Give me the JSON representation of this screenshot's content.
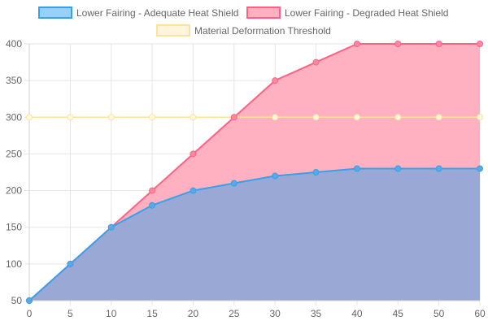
{
  "chart_data": {
    "type": "area",
    "x": [
      0,
      5,
      10,
      15,
      20,
      25,
      30,
      35,
      40,
      45,
      50,
      60
    ],
    "series": [
      {
        "name": "Lower Fairing - Adequate Heat Shield",
        "values": [
          50,
          100,
          150,
          180,
          200,
          210,
          220,
          225,
          230,
          230,
          230,
          230
        ],
        "line_color": "#36a2eb",
        "fill_color": "#9ad0f5"
      },
      {
        "name": "Lower Fairing - Degraded Heat Shield",
        "values": [
          50,
          100,
          150,
          200,
          250,
          300,
          350,
          375,
          400,
          400,
          400,
          400
        ],
        "line_color": "#ff6384",
        "fill_color": "#ffb1c1"
      },
      {
        "name": "Material Deformation Threshold",
        "values": [
          300,
          300,
          300,
          300,
          300,
          300,
          300,
          300,
          300,
          300,
          300,
          300
        ],
        "line_color": "#ffe29a",
        "fill_color": "#fff5dd"
      }
    ],
    "overlap_fill_color": "#9aa8d6",
    "ylim": [
      50,
      400
    ],
    "yticks": [
      50,
      100,
      150,
      200,
      250,
      300,
      350,
      400
    ],
    "x_tick_labels": [
      "0",
      "5",
      "10",
      "15",
      "20",
      "25",
      "30",
      "35",
      "40",
      "45",
      "50",
      "60"
    ],
    "grid": true,
    "legend_position": "top"
  }
}
